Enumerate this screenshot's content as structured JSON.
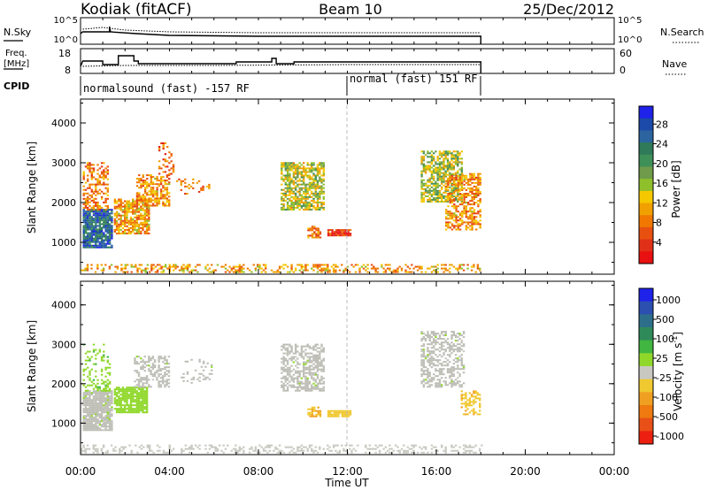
{
  "header": {
    "station": "Kodiak",
    "algorithm": "(fitACF)",
    "beam": "Beam 10",
    "date": "25/Dec/2012"
  },
  "params": {
    "nsky_label": "N.Sky",
    "nsearch_label": "N.Search",
    "freq_label_1": "Freq.",
    "freq_label_2": "[MHz]",
    "nave_label": "Nave",
    "cpid_label": "CPID",
    "noise_ticks": [
      "10^5",
      "10^0"
    ],
    "noise_ticks_right": [
      "10^5",
      "10^0"
    ],
    "freq_ticks": [
      "18",
      "8"
    ],
    "nave_ticks": [
      "60",
      "0"
    ]
  },
  "cpid": {
    "segments": [
      {
        "label": "normalsound (fast) -157 RF",
        "start": "00:00",
        "end": "12:00"
      },
      {
        "label": "normal (fast) 151 RF",
        "start": "12:00",
        "end": "18:00"
      }
    ]
  },
  "colors": {
    "power_scale": [
      "#1f22e8",
      "#1b4aa8",
      "#2c64a0",
      "#2f7a58",
      "#3e8f58",
      "#6f9b4a",
      "#8fbf2a",
      "#f5c800",
      "#f0a000",
      "#f07800",
      "#e85010",
      "#e03018",
      "#e81010"
    ],
    "velocity_scale": [
      "#1f22e8",
      "#2c50b0",
      "#2d6f8a",
      "#2f8a5a",
      "#41b641",
      "#8fd82a",
      "#c8c8c0",
      "#f0c830",
      "#f0a020",
      "#ee7a10",
      "#e85018",
      "#ec2010"
    ],
    "ground_scatter": "#bdbdb6"
  },
  "chart_data": {
    "type": "heatmap",
    "xlabel": "Time UT",
    "xlim": [
      "00:00",
      "24:00"
    ],
    "xticks": [
      "00:00",
      "04:00",
      "08:00",
      "12:00",
      "16:00",
      "20:00",
      "00:00"
    ],
    "panels": [
      {
        "name": "power",
        "ylabel": "Slant Range [km]",
        "ylim": [
          200,
          4600
        ],
        "yticks": [
          1000,
          2000,
          3000,
          4000
        ],
        "colorbar_label": "Power [dB]",
        "colorbar_ticks": [
          28,
          24,
          20,
          16,
          12,
          8,
          4
        ],
        "clim": [
          0,
          30
        ],
        "regions": [
          {
            "t": [
              0.1,
              1.4
            ],
            "r": [
              850,
              1800
            ],
            "v": 24,
            "d": 0.9
          },
          {
            "t": [
              0.1,
              1.2
            ],
            "r": [
              1800,
              3000
            ],
            "v": 8,
            "d": 0.45
          },
          {
            "t": [
              1.5,
              3.1
            ],
            "r": [
              1200,
              2100
            ],
            "v": 10,
            "d": 0.75
          },
          {
            "t": [
              2.5,
              4.0
            ],
            "r": [
              1900,
              2700
            ],
            "v": 9,
            "d": 0.6
          },
          {
            "t": [
              3.5,
              4.2
            ],
            "r": [
              2700,
              3500
            ],
            "v": 6,
            "d": 0.3
          },
          {
            "t": [
              4.3,
              5.8
            ],
            "r": [
              2200,
              2600
            ],
            "v": 7,
            "d": 0.25
          },
          {
            "t": [
              9.0,
              10.9
            ],
            "r": [
              1800,
              3000
            ],
            "v": 14,
            "d": 0.7
          },
          {
            "t": [
              10.2,
              10.8
            ],
            "r": [
              1100,
              1400
            ],
            "v": 7,
            "d": 0.6
          },
          {
            "t": [
              11.1,
              12.1
            ],
            "r": [
              1150,
              1300
            ],
            "v": 4,
            "d": 0.9
          },
          {
            "t": [
              15.3,
              17.1
            ],
            "r": [
              2000,
              3300
            ],
            "v": 15,
            "d": 0.65
          },
          {
            "t": [
              16.4,
              18.0
            ],
            "r": [
              1300,
              2700
            ],
            "v": 9,
            "d": 0.55
          },
          {
            "t": [
              0.0,
              18.0
            ],
            "r": [
              230,
              420
            ],
            "v": 10,
            "d": 0.35
          }
        ]
      },
      {
        "name": "velocity",
        "ylabel": "Slant Range [km]",
        "ylim": [
          200,
          4600
        ],
        "yticks": [
          1000,
          2000,
          3000,
          4000
        ],
        "colorbar_label": "Velocity [m s^-1]",
        "colorbar_ticks": [
          "1000",
          "500",
          "100",
          "25",
          "-25",
          "-100",
          "-500",
          "-1000"
        ],
        "clim": [
          -1200,
          1200
        ],
        "regions": [
          {
            "t": [
              0.1,
              1.4
            ],
            "r": [
              800,
              1800
            ],
            "v": 0,
            "d": 0.9,
            "gs": true
          },
          {
            "t": [
              0.1,
              1.3
            ],
            "r": [
              1800,
              3000
            ],
            "v": 150,
            "d": 0.25
          },
          {
            "t": [
              1.5,
              3.0
            ],
            "r": [
              1250,
              1900
            ],
            "v": 120,
            "d": 0.85
          },
          {
            "t": [
              2.4,
              4.0
            ],
            "r": [
              1900,
              2700
            ],
            "v": 0,
            "d": 0.5,
            "gs": true
          },
          {
            "t": [
              4.5,
              5.9
            ],
            "r": [
              2000,
              2600
            ],
            "v": 0,
            "d": 0.2,
            "gs": true
          },
          {
            "t": [
              9.0,
              10.9
            ],
            "r": [
              1800,
              3000
            ],
            "v": 0,
            "d": 0.55,
            "gs": true
          },
          {
            "t": [
              10.2,
              10.8
            ],
            "r": [
              1150,
              1400
            ],
            "v": -400,
            "d": 0.7
          },
          {
            "t": [
              11.1,
              12.1
            ],
            "r": [
              1150,
              1300
            ],
            "v": -300,
            "d": 0.9
          },
          {
            "t": [
              15.3,
              17.2
            ],
            "r": [
              1900,
              3300
            ],
            "v": 0,
            "d": 0.5,
            "gs": true
          },
          {
            "t": [
              17.1,
              18.0
            ],
            "r": [
              1200,
              1800
            ],
            "v": -350,
            "d": 0.5
          },
          {
            "t": [
              0.0,
              18.0
            ],
            "r": [
              230,
              420
            ],
            "v": -90,
            "d": 0.3
          }
        ]
      }
    ]
  }
}
